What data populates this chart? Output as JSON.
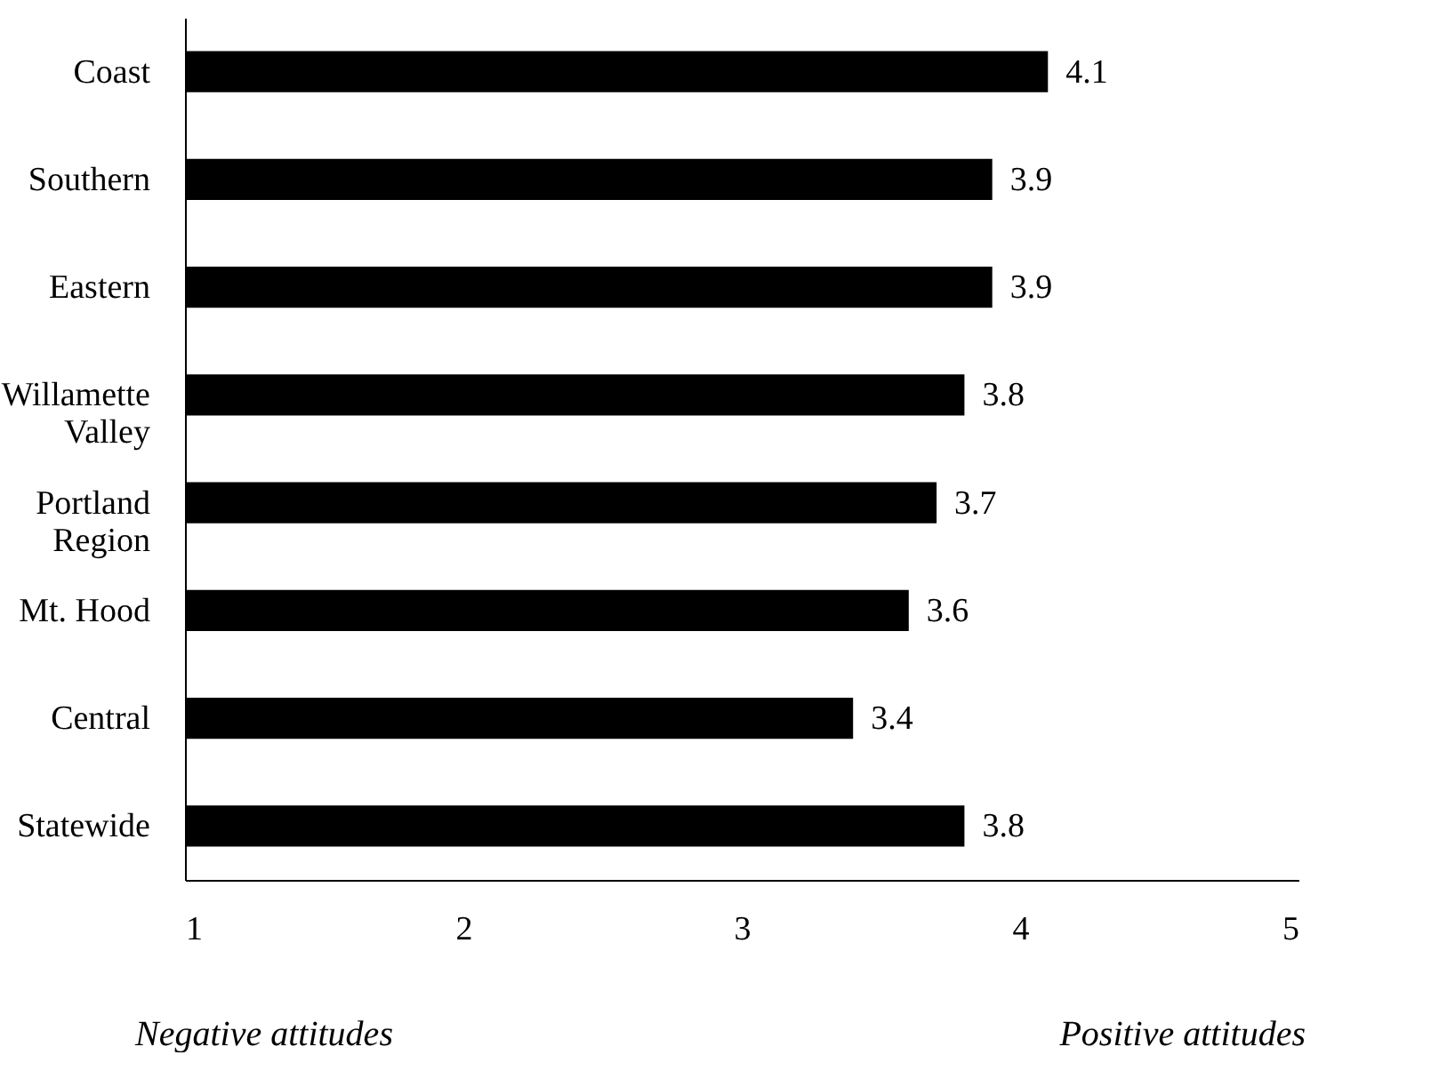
{
  "chart_data": {
    "type": "bar",
    "orientation": "horizontal",
    "categories": [
      "Coast",
      "Southern",
      "Eastern",
      "Willamette Valley",
      "Portland Region",
      "Mt. Hood",
      "Central",
      "Statewide"
    ],
    "values": [
      4.1,
      3.9,
      3.9,
      3.8,
      3.7,
      3.6,
      3.4,
      3.8
    ],
    "color": "#000000",
    "xlim": [
      1,
      5
    ],
    "xticks": [
      1,
      2,
      3,
      4,
      5
    ],
    "data_labels": true,
    "grid": false,
    "legend": false,
    "annotations": [
      "Negative attitudes",
      "Positive attitudes"
    ]
  }
}
